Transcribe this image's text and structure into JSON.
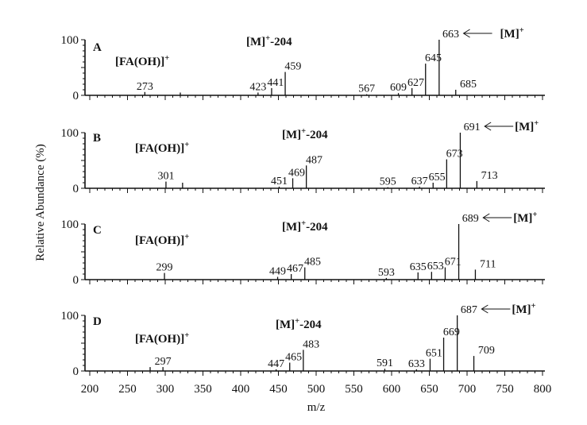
{
  "chart_data": [
    {
      "type": "bar",
      "panel": "A",
      "annotations": {
        "fragment": "[FA(OH)]",
        "ion_loss": "[M]",
        "ion_loss_suffix": "-204",
        "molecular": "[M]",
        "charge": "+"
      },
      "peaks": [
        {
          "mz": 273,
          "intensity": 6,
          "label": "273"
        },
        {
          "mz": 320,
          "intensity": 5
        },
        {
          "mz": 423,
          "intensity": 5,
          "label": "423"
        },
        {
          "mz": 441,
          "intensity": 13,
          "label": "441"
        },
        {
          "mz": 459,
          "intensity": 42,
          "label": "459"
        },
        {
          "mz": 567,
          "intensity": 2,
          "label": "567"
        },
        {
          "mz": 609,
          "intensity": 4,
          "label": "609"
        },
        {
          "mz": 627,
          "intensity": 13,
          "label": "627"
        },
        {
          "mz": 645,
          "intensity": 57,
          "label": "645"
        },
        {
          "mz": 663,
          "intensity": 100,
          "label": "663",
          "molecular": true
        },
        {
          "mz": 685,
          "intensity": 10,
          "label": "685"
        }
      ]
    },
    {
      "type": "bar",
      "panel": "B",
      "annotations": {
        "fragment": "[FA(OH)]",
        "ion_loss": "[M]",
        "ion_loss_suffix": "-204",
        "molecular": "[M]",
        "charge": "+"
      },
      "peaks": [
        {
          "mz": 301,
          "intensity": 12,
          "label": "301"
        },
        {
          "mz": 323,
          "intensity": 10
        },
        {
          "mz": 451,
          "intensity": 3,
          "label": "451"
        },
        {
          "mz": 469,
          "intensity": 18,
          "label": "469"
        },
        {
          "mz": 487,
          "intensity": 41,
          "label": "487"
        },
        {
          "mz": 595,
          "intensity": 2,
          "label": "595"
        },
        {
          "mz": 637,
          "intensity": 3,
          "label": "637"
        },
        {
          "mz": 655,
          "intensity": 10,
          "label": "655"
        },
        {
          "mz": 673,
          "intensity": 52,
          "label": "673"
        },
        {
          "mz": 691,
          "intensity": 100,
          "label": "691",
          "molecular": true
        },
        {
          "mz": 713,
          "intensity": 13,
          "label": "713"
        }
      ]
    },
    {
      "type": "bar",
      "panel": "C",
      "annotations": {
        "fragment": "[FA(OH)]",
        "ion_loss": "[M]",
        "ion_loss_suffix": "-204",
        "molecular": "[M]",
        "charge": "+"
      },
      "peaks": [
        {
          "mz": 299,
          "intensity": 12,
          "label": "299"
        },
        {
          "mz": 449,
          "intensity": 5,
          "label": "449"
        },
        {
          "mz": 467,
          "intensity": 10,
          "label": "467"
        },
        {
          "mz": 485,
          "intensity": 22,
          "label": "485"
        },
        {
          "mz": 593,
          "intensity": 3,
          "label": "593"
        },
        {
          "mz": 635,
          "intensity": 13,
          "label": "635"
        },
        {
          "mz": 653,
          "intensity": 14,
          "label": "653"
        },
        {
          "mz": 671,
          "intensity": 22,
          "label": "671"
        },
        {
          "mz": 689,
          "intensity": 100,
          "label": "689",
          "molecular": true
        },
        {
          "mz": 711,
          "intensity": 18,
          "label": "711"
        }
      ]
    },
    {
      "type": "bar",
      "panel": "D",
      "annotations": {
        "fragment": "[FA(OH)]",
        "ion_loss": "[M]",
        "ion_loss_suffix": "-204",
        "molecular": "[M]",
        "charge": "+"
      },
      "peaks": [
        {
          "mz": 280,
          "intensity": 7
        },
        {
          "mz": 297,
          "intensity": 7,
          "label": "297"
        },
        {
          "mz": 447,
          "intensity": 3,
          "label": "447"
        },
        {
          "mz": 465,
          "intensity": 15,
          "label": "465"
        },
        {
          "mz": 483,
          "intensity": 38,
          "label": "483"
        },
        {
          "mz": 591,
          "intensity": 4,
          "label": "591"
        },
        {
          "mz": 633,
          "intensity": 3,
          "label": "633"
        },
        {
          "mz": 651,
          "intensity": 22,
          "label": "651"
        },
        {
          "mz": 669,
          "intensity": 60,
          "label": "669"
        },
        {
          "mz": 687,
          "intensity": 100,
          "label": "687",
          "molecular": true
        },
        {
          "mz": 709,
          "intensity": 27,
          "label": "709"
        }
      ]
    }
  ],
  "axes": {
    "xlabel": "m/z",
    "ylabel": "Relative Abundance (%)",
    "xlim": [
      200,
      800
    ],
    "ylim": [
      0,
      100
    ],
    "xticks": [
      "200",
      "250",
      "300",
      "350",
      "400",
      "450",
      "500",
      "550",
      "600",
      "650",
      "700",
      "750",
      "800"
    ],
    "yticks": [
      "0",
      "100"
    ]
  }
}
